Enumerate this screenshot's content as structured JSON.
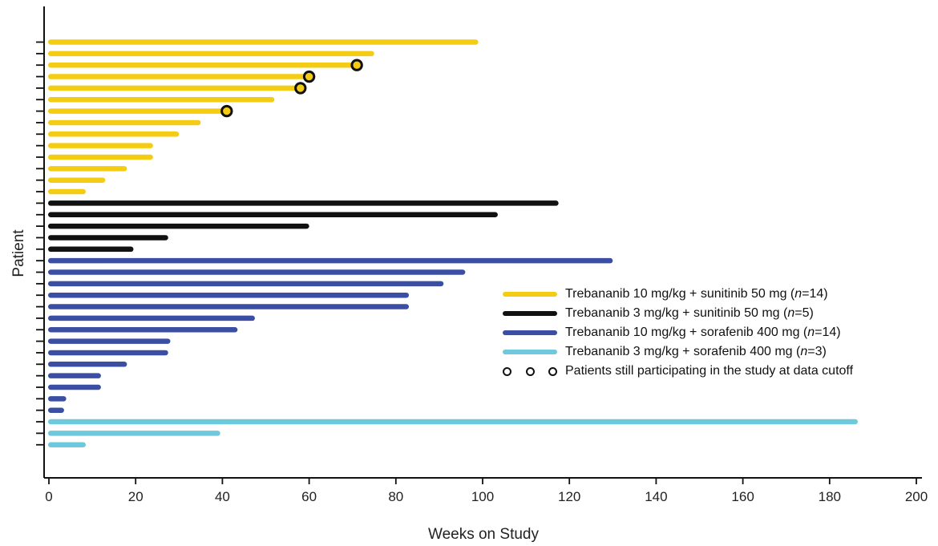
{
  "chart_data": {
    "type": "bar",
    "orientation": "horizontal",
    "title": "",
    "xlabel": "Weeks on Study",
    "ylabel": "Patient",
    "xlim": [
      0,
      200
    ],
    "xticks": [
      0,
      20,
      40,
      60,
      80,
      100,
      120,
      140,
      160,
      180,
      200
    ],
    "grid": false,
    "legend_position": "lower-right",
    "series": [
      {
        "label_main": "Trebananib 10 mg/kg + sunitinib 50 mg (",
        "label_n": "n",
        "label_tail": "=14)",
        "color": "#f5cc14",
        "values": [
          99,
          75,
          71,
          60,
          58,
          52,
          41,
          35,
          30,
          24,
          24,
          18,
          13,
          8.5
        ],
        "still_participating": [
          false,
          false,
          true,
          true,
          true,
          false,
          true,
          false,
          false,
          false,
          false,
          false,
          false,
          false
        ]
      },
      {
        "label_main": "Trebananib 3 mg/kg + sunitinib 50 mg (",
        "label_n": "n",
        "label_tail": "=5)",
        "color": "#111111",
        "values": [
          117.5,
          103.5,
          60,
          27.5,
          19.5
        ],
        "still_participating": [
          false,
          false,
          false,
          false,
          false
        ]
      },
      {
        "label_main": "Trebananib 10 mg/kg + sorafenib 400 mg (",
        "label_n": "n",
        "label_tail": "=14)",
        "color": "#3a4fa3",
        "values": [
          130,
          96,
          91,
          83,
          83,
          47.5,
          43.5,
          28,
          27.5,
          18,
          12,
          12,
          4,
          3.5
        ],
        "still_participating": [
          false,
          false,
          false,
          false,
          false,
          false,
          false,
          false,
          false,
          false,
          false,
          false,
          false,
          false
        ]
      },
      {
        "label_main": "Trebananib 3 mg/kg + sorafenib 400 mg (",
        "label_n": "n",
        "label_tail": "=3)",
        "color": "#6fc9dc",
        "values": [
          186.5,
          39.5,
          8.5
        ],
        "still_participating": [
          false,
          false,
          false
        ]
      }
    ],
    "marker_legend_label": "Patients still participating in the study at data cutoff"
  }
}
